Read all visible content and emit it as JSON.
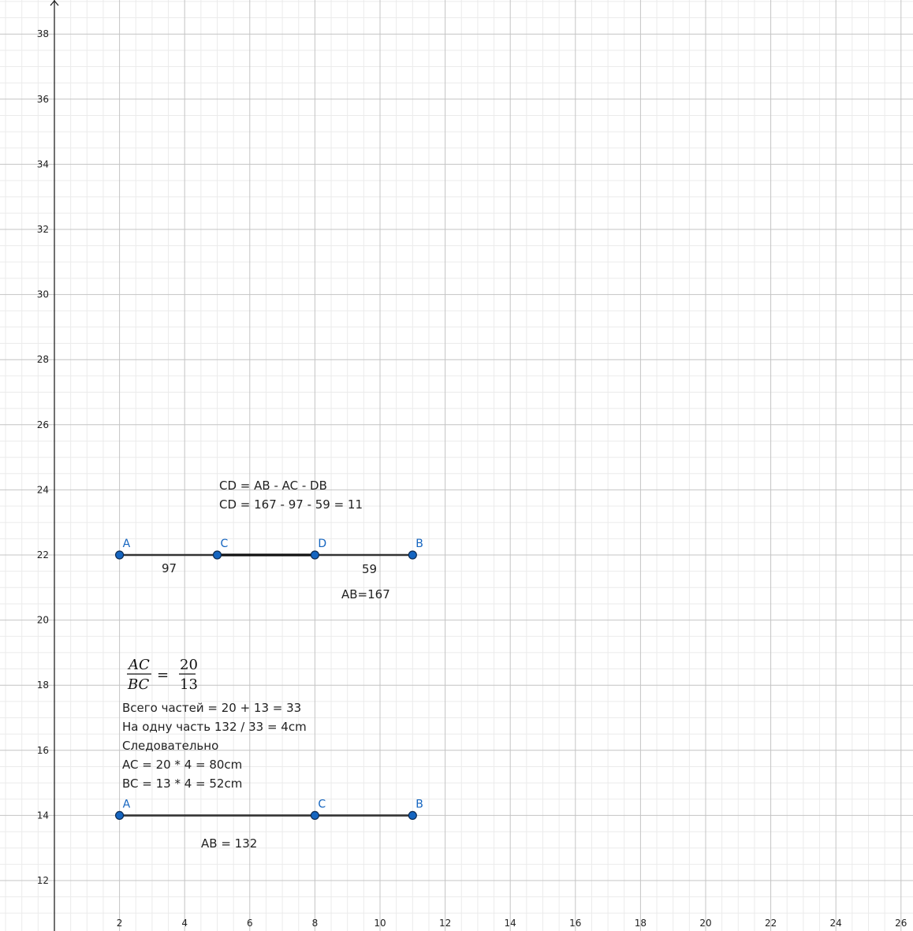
{
  "axes": {
    "x_ticks": [
      "2",
      "4",
      "6",
      "8",
      "10",
      "12",
      "14",
      "16",
      "18",
      "20",
      "22",
      "24",
      "26"
    ],
    "y_ticks": [
      "12",
      "14",
      "16",
      "18",
      "20",
      "22",
      "24",
      "26",
      "28",
      "30",
      "32",
      "34",
      "36",
      "38"
    ],
    "x_range": [
      -1.7,
      26.4
    ],
    "y_range": [
      10.8,
      39.0
    ],
    "grid": true
  },
  "colors": {
    "point_fill": "#1565C0",
    "point_label": "#1565C0",
    "segment": "#333333"
  },
  "diagram1": {
    "points": [
      {
        "label": "A",
        "x": 2,
        "y": 22
      },
      {
        "label": "C",
        "x": 5,
        "y": 22
      },
      {
        "label": "D",
        "x": 8,
        "y": 22
      },
      {
        "label": "B",
        "x": 11,
        "y": 22
      }
    ],
    "seg_label_ac": "97",
    "seg_label_db": "59",
    "ab_label": "AB=167",
    "formula_line1": "CD = AB - AC - DB",
    "formula_line2": "CD = 167 - 97 - 59 = 11"
  },
  "diagram2": {
    "points": [
      {
        "label": "A",
        "x": 2,
        "y": 14
      },
      {
        "label": "C",
        "x": 8,
        "y": 14
      },
      {
        "label": "B",
        "x": 11,
        "y": 14
      }
    ],
    "ab_label": "AB = 132",
    "fraction": {
      "num_left": "AC",
      "den_left": "BC",
      "equals": "=",
      "num_right": "20",
      "den_right": "13"
    },
    "lines": [
      "Всего частей = 20 + 13 = 33",
      "На одну часть 132 / 33 = 4cm",
      "Следовательно",
      "AC = 20 * 4 = 80cm",
      "BC = 13 * 4 = 52cm"
    ]
  }
}
